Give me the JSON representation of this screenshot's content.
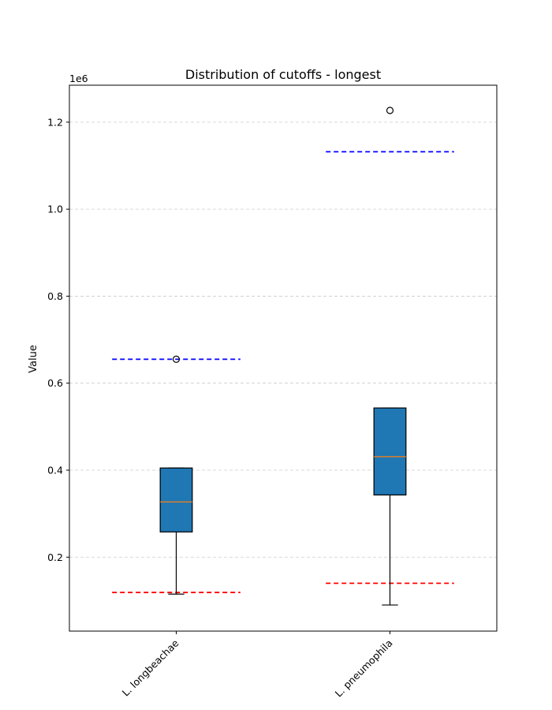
{
  "chart_data": {
    "type": "box",
    "title": "Distribution of cutoffs - longest",
    "xlabel": "",
    "ylabel": "Value",
    "y_offset_text": "1e6",
    "ylim": [
      30000,
      1285000
    ],
    "yticks": [
      200000,
      400000,
      600000,
      800000,
      1000000,
      1200000
    ],
    "ytick_labels": [
      "0.2",
      "0.4",
      "0.6",
      "0.8",
      "1.0",
      "1.2"
    ],
    "grid": "y-dashed",
    "categories": [
      "L. longbeachae",
      "L. pneumophila"
    ],
    "boxes": [
      {
        "name": "L. longbeachae",
        "whisker_low": 115000,
        "q1": 258000,
        "median": 327000,
        "q3": 405000,
        "whisker_high": 405000,
        "outliers": [
          655000
        ],
        "upper_cutoff": 655000,
        "lower_cutoff": 119000
      },
      {
        "name": "L. pneumophila",
        "whisker_low": 90000,
        "q1": 343000,
        "median": 431000,
        "q3": 543000,
        "whisker_high": 543000,
        "outliers": [
          1227000
        ],
        "upper_cutoff": 1132000,
        "lower_cutoff": 140000
      }
    ],
    "colors": {
      "box_fill": "#1f77b4",
      "median": "#ff7f0e",
      "upper_cutoff": "#0000ff",
      "lower_cutoff": "#ff0000",
      "grid": "#cccccc"
    }
  }
}
